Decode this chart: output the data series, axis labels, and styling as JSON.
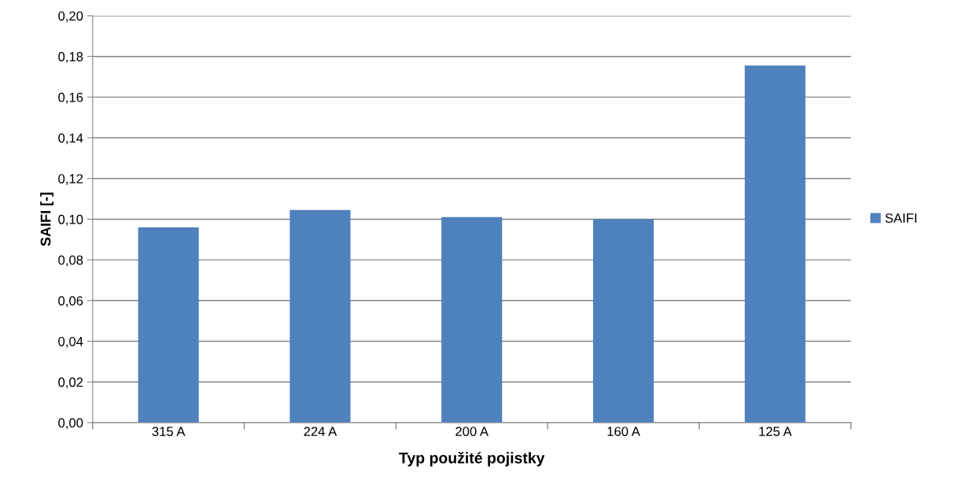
{
  "chart_data": {
    "type": "bar",
    "xlabel": "Typ použité pojistky",
    "ylabel": "SAIFI [-]",
    "categories": [
      "315 A",
      "224 A",
      "200 A",
      "160 A",
      "125 A"
    ],
    "series": [
      {
        "name": "SAIFI",
        "color": "#4f81bd",
        "values": [
          0.096,
          0.1045,
          0.101,
          0.1,
          0.1755
        ]
      }
    ],
    "ylim": [
      0,
      0.2
    ],
    "yticks": [
      {
        "value": 0,
        "label": "0,00"
      },
      {
        "value": 0.02,
        "label": "0,02"
      },
      {
        "value": 0.04,
        "label": "0,04"
      },
      {
        "value": 0.06,
        "label": "0,06"
      },
      {
        "value": 0.08,
        "label": "0,08"
      },
      {
        "value": 0.1,
        "label": "0,10"
      },
      {
        "value": 0.12,
        "label": "0,12"
      },
      {
        "value": 0.14,
        "label": "0,14"
      },
      {
        "value": 0.16,
        "label": "0,16"
      },
      {
        "value": 0.18,
        "label": "0,18"
      },
      {
        "value": 0.2,
        "label": "0,20"
      }
    ],
    "grid": "y",
    "legend": "right"
  }
}
